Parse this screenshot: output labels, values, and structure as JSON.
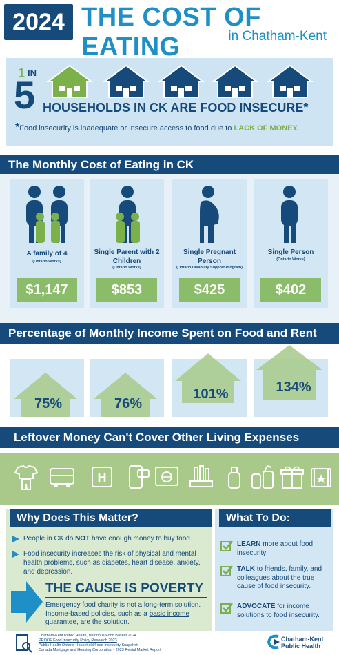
{
  "header": {
    "year": "2024",
    "title": "THE COST OF EATING",
    "subtitle": "in Chatham-Kent"
  },
  "insecurity": {
    "one": "1",
    "in": "IN",
    "five": "5",
    "headline": "HOUSEHOLDS IN CK ARE FOOD INSECURE*",
    "footnote_star": "*",
    "footnote_text": "Food insecurity is inadequate or insecure access to food due to ",
    "footnote_highlight": "LACK OF MONEY."
  },
  "cost_section": {
    "title": "The Monthly Cost of Eating in CK",
    "cards": [
      {
        "label": "A family of 4",
        "sub": "(Ontario Works)",
        "price": "$1,147"
      },
      {
        "label": "Single Parent with 2 Children",
        "sub": "(Ontario Works)",
        "price": "$853"
      },
      {
        "label": "Single Pregnant Person",
        "sub": "(Ontario Disability Support Program)",
        "price": "$425"
      },
      {
        "label": "Single Person",
        "sub": "(Ontario Works)",
        "price": "$402"
      }
    ]
  },
  "percent_section": {
    "title": "Percentage of Monthly Income Spent on Food and Rent",
    "values": [
      "75%",
      "76%",
      "101%",
      "134%"
    ]
  },
  "leftover_section": {
    "title": "Leftover Money Can't Cover Other Living Expenses",
    "icons": [
      "clothing-icon",
      "bus-icon",
      "hospital-icon",
      "phone-icon",
      "internet-icon",
      "laundry-icon",
      "school-supplies-icon",
      "cleaning-icon",
      "gift-icon",
      "entertainment-icon"
    ]
  },
  "why": {
    "title": "Why Does This Matter?",
    "point1_a": "People in CK do ",
    "point1_b": "NOT",
    "point1_c": " have enough money to buy food.",
    "point2": "Food insecurity increases the risk of physical and mental health problems, such as diabetes, heart disease, anxiety, and depression.",
    "cause": "THE CAUSE IS POVERTY",
    "charity_a": "Emergency food charity is not a long-term solution. Income-based policies, such as a ",
    "charity_link": "basic income guarantee",
    "charity_b": ", are the solution."
  },
  "what": {
    "title": "What To Do:",
    "items": [
      {
        "verb": "LEARN",
        "rest": " more about food insecurity"
      },
      {
        "verb": "TALK",
        "rest": " to friends, family, and colleagues about the true cause of food insecurity."
      },
      {
        "verb": "ADVOCATE",
        "rest": " for income solutions to food insecurity."
      }
    ]
  },
  "footer": {
    "sources": [
      "Chatham-Kent Public Health, Nutritious Food Basket 2024",
      "PROOF Food Insecurity Policy Research 2023",
      "Public Health Ontario Household Food Insecurity Snapshot",
      "Canada Mortgage and Housing Corporation - 2023 Rental Market Report"
    ],
    "org_line1": "Chatham-Kent",
    "org_line2": "Public Health"
  },
  "colors": {
    "navy": "#164a7a",
    "blue": "#1f8fc7",
    "green": "#7bb04a",
    "light_blue": "#d2e6f3"
  }
}
